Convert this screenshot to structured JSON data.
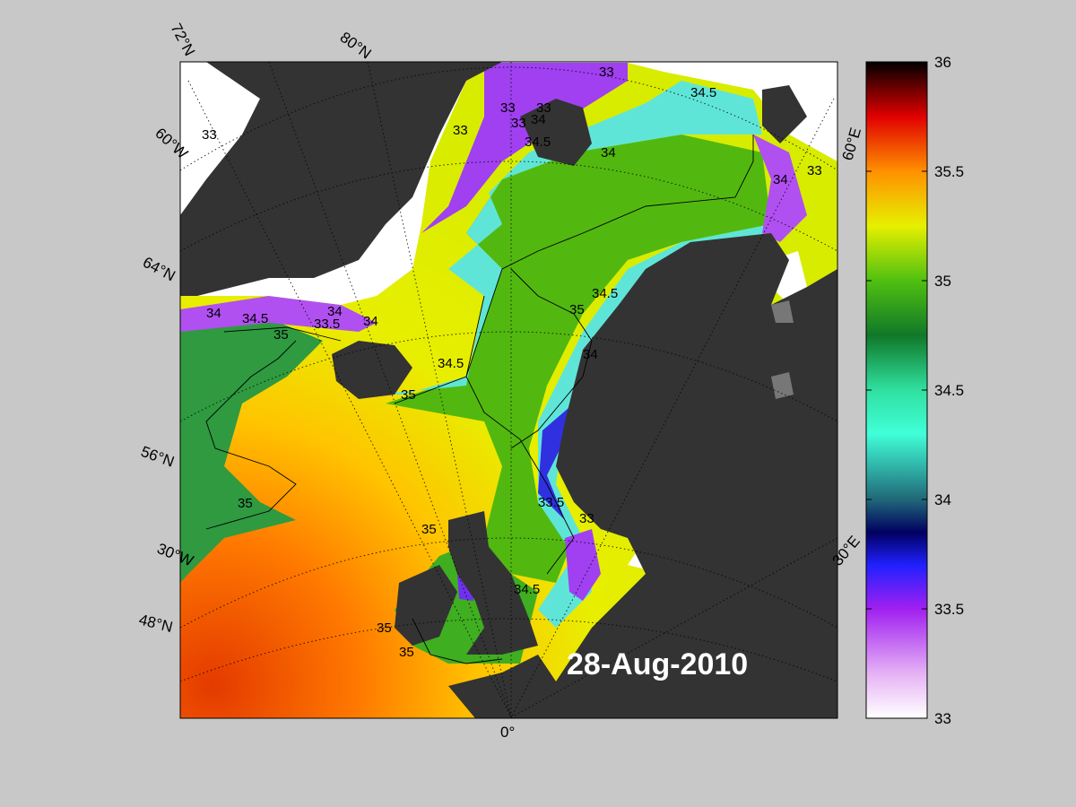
{
  "map": {
    "date_label": "28-Aug-2010",
    "colors": {
      "background": "#c8c8c8",
      "land": "#333333",
      "ice": "#ffffff",
      "grid": "#000000"
    },
    "lat_labels": [
      "72°N",
      "64°N",
      "56°N",
      "48°N"
    ],
    "lon_labels": [
      "80°N",
      "60°W",
      "30°W",
      "0°",
      "30°E",
      "60°E"
    ],
    "contour_labels": [
      {
        "value": "33"
      },
      {
        "value": "33"
      },
      {
        "value": "33"
      },
      {
        "value": "33"
      },
      {
        "value": "33"
      },
      {
        "value": "33"
      },
      {
        "value": "33"
      },
      {
        "value": "33"
      },
      {
        "value": "33.5"
      },
      {
        "value": "33.5"
      },
      {
        "value": "34"
      },
      {
        "value": "34"
      },
      {
        "value": "34"
      },
      {
        "value": "34"
      },
      {
        "value": "34"
      },
      {
        "value": "34"
      },
      {
        "value": "34"
      },
      {
        "value": "34.5"
      },
      {
        "value": "34.5"
      },
      {
        "value": "34.5"
      },
      {
        "value": "34.5"
      },
      {
        "value": "34.5"
      },
      {
        "value": "34.5"
      },
      {
        "value": "35"
      },
      {
        "value": "35"
      },
      {
        "value": "35"
      },
      {
        "value": "35"
      },
      {
        "value": "35"
      },
      {
        "value": "35"
      },
      {
        "value": "35"
      }
    ]
  },
  "colorbar": {
    "min": 33,
    "max": 36,
    "ticks": [
      "36",
      "35.5",
      "35",
      "34.5",
      "34",
      "33.5",
      "33"
    ],
    "stops": [
      {
        "value": 33.0,
        "color": "#ffffff"
      },
      {
        "value": 33.2,
        "color": "#e6b3f5"
      },
      {
        "value": 33.5,
        "color": "#a020f0"
      },
      {
        "value": 33.7,
        "color": "#2020ff"
      },
      {
        "value": 33.85,
        "color": "#000060"
      },
      {
        "value": 34.0,
        "color": "#206878"
      },
      {
        "value": 34.3,
        "color": "#40ffd8"
      },
      {
        "value": 34.5,
        "color": "#30e0a0"
      },
      {
        "value": 34.75,
        "color": "#107828"
      },
      {
        "value": 35.0,
        "color": "#50c010"
      },
      {
        "value": 35.25,
        "color": "#e6f000"
      },
      {
        "value": 35.5,
        "color": "#ff9000"
      },
      {
        "value": 35.75,
        "color": "#e00000"
      },
      {
        "value": 36.0,
        "color": "#000000"
      }
    ]
  }
}
